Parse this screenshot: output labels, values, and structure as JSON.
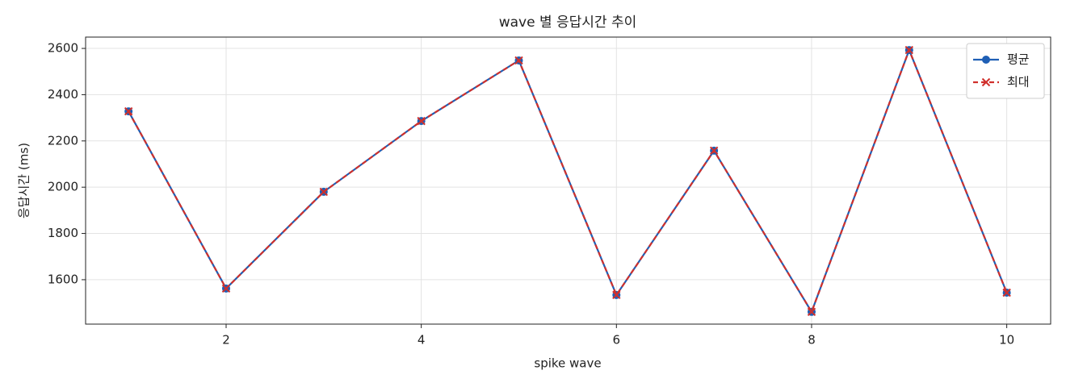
{
  "chart_data": {
    "type": "line",
    "title": "wave 별 응답시간 추이",
    "x_label": "spike wave",
    "y_label": "응답시간 (ms)",
    "x": [
      1,
      2,
      3,
      4,
      5,
      6,
      7,
      8,
      9,
      10
    ],
    "series": [
      {
        "name": "평균",
        "color": "#1f5fb5",
        "marker": "circle",
        "dashed": false,
        "values": [
          2328,
          1562,
          1980,
          2286,
          2548,
          1534,
          2158,
          1461,
          2593,
          1544
        ]
      },
      {
        "name": "최대",
        "color": "#d0302c",
        "marker": "x",
        "dashed": true,
        "values": [
          2328,
          1562,
          1980,
          2286,
          2548,
          1534,
          2158,
          1461,
          2593,
          1544
        ]
      }
    ],
    "xlim": [
      0.56,
      10.45
    ],
    "xticks": [
      2,
      4,
      6,
      8,
      10
    ],
    "ylim": [
      1408,
      2649
    ],
    "yticks": [
      1600,
      1800,
      2000,
      2200,
      2400,
      2600
    ],
    "grid": true,
    "legend": "upper right"
  }
}
